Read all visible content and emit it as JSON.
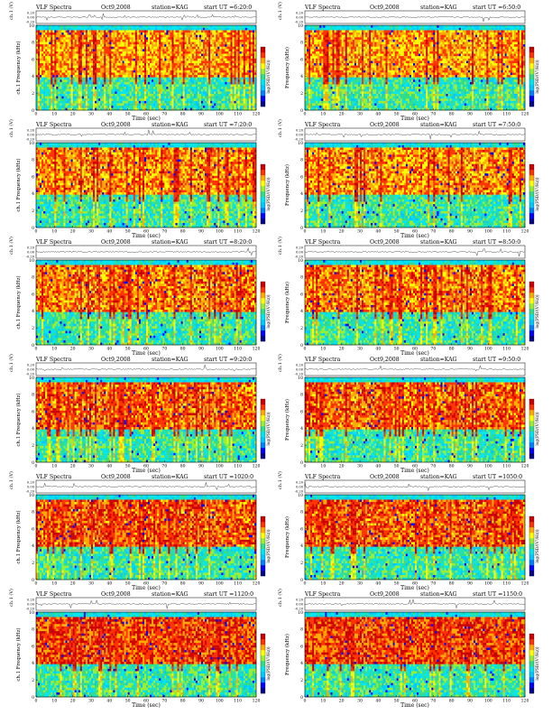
{
  "figure_type": "VLF spectrogram grid",
  "colorbar": {
    "label": "log(PSD/(V²/Hz))",
    "colors": [
      "#00008b",
      "#0000ff",
      "#0080ff",
      "#00c8ff",
      "#00e5ee",
      "#33dd88",
      "#99ee33",
      "#ffff00",
      "#ffaa00",
      "#ff3300",
      "#cc0000"
    ]
  },
  "axes": {
    "ch_label": "ch.1 (V)",
    "ch_ticks": [
      "0.20",
      "0.00",
      "-0.20"
    ],
    "freq_label": "Frequency (kHz)",
    "freq_label_left": "ch.1 Frequency (kHz)",
    "time_label": "Time (sec)",
    "freq_ticks": [
      0,
      2,
      4,
      6,
      8,
      10
    ],
    "time_ticks": [
      0,
      10,
      20,
      30,
      40,
      50,
      60,
      70,
      80,
      90,
      100,
      110,
      120
    ]
  },
  "panels": [
    {
      "title": "VLF Spectra",
      "date": "Oct9,2008",
      "station": "station=KAG",
      "start": "start UT =6:20:0"
    },
    {
      "title": "VLF Spectra",
      "date": "Oct9,2008",
      "station": "station=KAG",
      "start": "start UT =6:50:0"
    },
    {
      "title": "VLF Spectra",
      "date": "Oct9,2008",
      "station": "station=KAG",
      "start": "start UT =7:20:0"
    },
    {
      "title": "VLF Spectra",
      "date": "Oct9,2008",
      "station": "station=KAG",
      "start": "start UT =7:50:0"
    },
    {
      "title": "VLF Spectra",
      "date": "Oct9,2008",
      "station": "station=KAG",
      "start": "start UT =8:20:0"
    },
    {
      "title": "VLF Spectra",
      "date": "Oct9,2008",
      "station": "station=KAG",
      "start": "start UT =8:50:0"
    },
    {
      "title": "VLF Spectra",
      "date": "Oct9,2008",
      "station": "station=KAG",
      "start": "start UT =9:20:0"
    },
    {
      "title": "VLF Spectra",
      "date": "Oct9,2008",
      "station": "station=KAG",
      "start": "start UT =9:50:0"
    },
    {
      "title": "VLF Spectra",
      "date": "Oct9,2008",
      "station": "station=KAG",
      "start": "start UT =1020:0"
    },
    {
      "title": "VLF Spectra",
      "date": "Oct9,2008",
      "station": "station=KAG",
      "start": "start UT =1050:0"
    },
    {
      "title": "VLF Spectra",
      "date": "Oct9,2008",
      "station": "station=KAG",
      "start": "start UT =1120:0"
    },
    {
      "title": "VLF Spectra",
      "date": "Oct9,2008",
      "station": "station=KAG",
      "start": "start UT =1150:0"
    }
  ],
  "chart_data": {
    "type": "heatmap",
    "x_label": "Time (sec)",
    "y_label": "Frequency (kHz)",
    "xlim": [
      0,
      120
    ],
    "ylim": [
      0,
      10
    ],
    "description_units": "time in seconds, frequency in kHz",
    "band_kHz": {
      "upper_cut": [
        9.5,
        10
      ],
      "strong_emission": [
        4,
        9
      ],
      "weak": [
        0,
        4
      ]
    }
  }
}
